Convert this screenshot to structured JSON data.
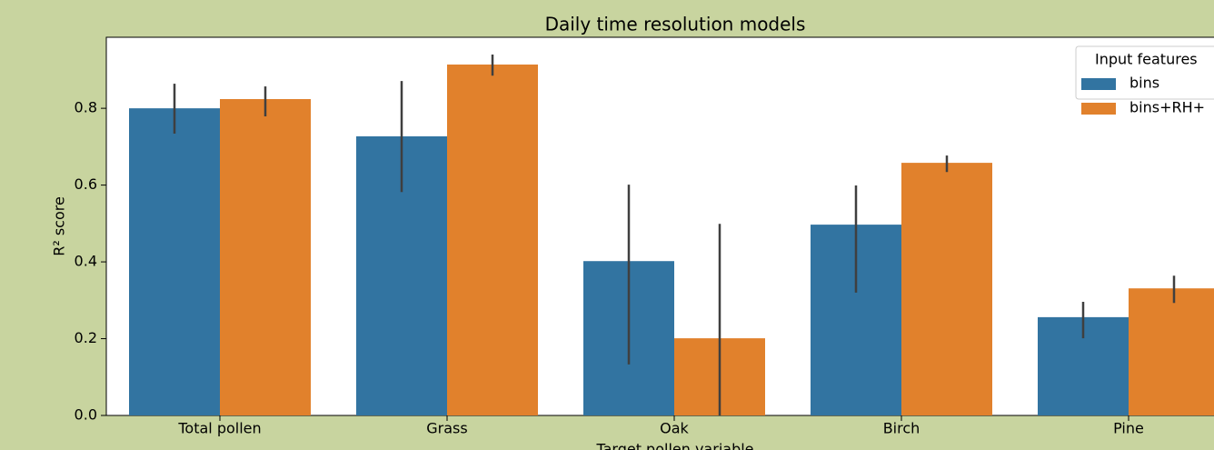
{
  "chart_data": {
    "type": "bar",
    "title": "Daily time resolution models",
    "xlabel": "Target pollen variable",
    "ylabel": "R² score",
    "categories": [
      "Total pollen",
      "Grass",
      "Oak",
      "Birch",
      "Pine"
    ],
    "series": [
      {
        "name": "bins",
        "color": "#3274a1",
        "values": [
          0.8,
          0.727,
          0.402,
          0.497,
          0.256
        ],
        "ci_low": [
          0.734,
          0.582,
          0.133,
          0.32,
          0.201
        ],
        "ci_high": [
          0.864,
          0.871,
          0.601,
          0.599,
          0.296
        ]
      },
      {
        "name": "bins+RH+",
        "color": "#e1812c",
        "values": [
          0.824,
          0.914,
          0.201,
          0.658,
          0.331
        ],
        "ci_low": [
          0.779,
          0.885,
          0.0,
          0.634,
          0.293
        ],
        "ci_high": [
          0.857,
          0.94,
          0.499,
          0.677,
          0.364
        ]
      }
    ],
    "legend_title": "Input features",
    "legend": "upper right",
    "ylim": [
      0,
      0.985
    ],
    "yticks": [
      {
        "value": 0,
        "label": "0.0"
      },
      0.2,
      0.4,
      0.6,
      0.8
    ]
  }
}
